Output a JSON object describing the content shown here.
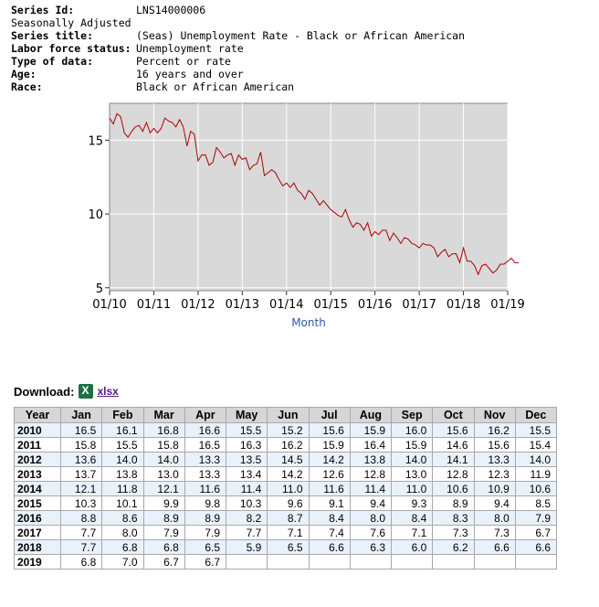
{
  "meta": [
    {
      "label": "Series Id:",
      "value": "LNS14000006",
      "bold": true
    },
    {
      "label": "Seasonally Adjusted",
      "value": "",
      "bold": false
    },
    {
      "label": "Series title:",
      "value": "(Seas) Unemployment Rate - Black or African American",
      "bold": true
    },
    {
      "label": "Labor force status:",
      "value": "Unemployment rate",
      "bold": true
    },
    {
      "label": "Type of data:",
      "value": "Percent or rate",
      "bold": true
    },
    {
      "label": "Age:",
      "value": "16 years and over",
      "bold": true
    },
    {
      "label": "Race:",
      "value": "Black or African American",
      "bold": true
    }
  ],
  "chart_data": {
    "type": "line",
    "xlabel": "Month",
    "ylabel": "",
    "x_ticks": [
      "01/10",
      "01/11",
      "01/12",
      "01/13",
      "01/14",
      "01/15",
      "01/16",
      "01/17",
      "01/18",
      "01/19"
    ],
    "y_ticks": [
      5,
      10,
      15
    ],
    "ylim": [
      4.8,
      17.5
    ],
    "grid": true,
    "line_color": "#b00000",
    "plot_bg": "#d9d9d9",
    "series": [
      {
        "values": [
          16.5,
          16.1,
          16.8,
          16.6,
          15.5,
          15.2,
          15.6,
          15.9,
          16.0,
          15.6,
          16.2,
          15.5,
          15.8,
          15.5,
          15.8,
          16.5,
          16.3,
          16.2,
          15.9,
          16.4,
          15.9,
          14.6,
          15.6,
          15.4,
          13.6,
          14.0,
          14.0,
          13.3,
          13.5,
          14.5,
          14.2,
          13.8,
          14.0,
          14.1,
          13.3,
          14.0,
          13.7,
          13.8,
          13.0,
          13.3,
          13.4,
          14.2,
          12.6,
          12.8,
          13.0,
          12.8,
          12.3,
          11.9,
          12.1,
          11.8,
          12.1,
          11.6,
          11.4,
          11.0,
          11.6,
          11.4,
          11.0,
          10.6,
          10.9,
          10.6,
          10.3,
          10.1,
          9.9,
          9.8,
          10.3,
          9.6,
          9.1,
          9.4,
          9.3,
          8.9,
          9.4,
          8.5,
          8.8,
          8.6,
          8.9,
          8.9,
          8.2,
          8.7,
          8.4,
          8.0,
          8.4,
          8.3,
          8.0,
          7.9,
          7.7,
          8.0,
          7.9,
          7.9,
          7.7,
          7.1,
          7.4,
          7.6,
          7.1,
          7.3,
          7.3,
          6.7,
          7.7,
          6.8,
          6.8,
          6.5,
          5.9,
          6.5,
          6.6,
          6.3,
          6.0,
          6.2,
          6.6,
          6.6,
          6.8,
          7.0,
          6.7,
          6.7
        ]
      }
    ]
  },
  "download": {
    "label": "Download:",
    "icon": "excel-icon",
    "link": "xlsx"
  },
  "table": {
    "headers": [
      "Year",
      "Jan",
      "Feb",
      "Mar",
      "Apr",
      "May",
      "Jun",
      "Jul",
      "Aug",
      "Sep",
      "Oct",
      "Nov",
      "Dec"
    ],
    "rows": [
      [
        "2010",
        "16.5",
        "16.1",
        "16.8",
        "16.6",
        "15.5",
        "15.2",
        "15.6",
        "15.9",
        "16.0",
        "15.6",
        "16.2",
        "15.5"
      ],
      [
        "2011",
        "15.8",
        "15.5",
        "15.8",
        "16.5",
        "16.3",
        "16.2",
        "15.9",
        "16.4",
        "15.9",
        "14.6",
        "15.6",
        "15.4"
      ],
      [
        "2012",
        "13.6",
        "14.0",
        "14.0",
        "13.3",
        "13.5",
        "14.5",
        "14.2",
        "13.8",
        "14.0",
        "14.1",
        "13.3",
        "14.0"
      ],
      [
        "2013",
        "13.7",
        "13.8",
        "13.0",
        "13.3",
        "13.4",
        "14.2",
        "12.6",
        "12.8",
        "13.0",
        "12.8",
        "12.3",
        "11.9"
      ],
      [
        "2014",
        "12.1",
        "11.8",
        "12.1",
        "11.6",
        "11.4",
        "11.0",
        "11.6",
        "11.4",
        "11.0",
        "10.6",
        "10.9",
        "10.6"
      ],
      [
        "2015",
        "10.3",
        "10.1",
        "9.9",
        "9.8",
        "10.3",
        "9.6",
        "9.1",
        "9.4",
        "9.3",
        "8.9",
        "9.4",
        "8.5"
      ],
      [
        "2016",
        "8.8",
        "8.6",
        "8.9",
        "8.9",
        "8.2",
        "8.7",
        "8.4",
        "8.0",
        "8.4",
        "8.3",
        "8.0",
        "7.9"
      ],
      [
        "2017",
        "7.7",
        "8.0",
        "7.9",
        "7.9",
        "7.7",
        "7.1",
        "7.4",
        "7.6",
        "7.1",
        "7.3",
        "7.3",
        "6.7"
      ],
      [
        "2018",
        "7.7",
        "6.8",
        "6.8",
        "6.5",
        "5.9",
        "6.5",
        "6.6",
        "6.3",
        "6.0",
        "6.2",
        "6.6",
        "6.6"
      ],
      [
        "2019",
        "6.8",
        "7.0",
        "6.7",
        "6.7",
        "",
        "",
        "",
        "",
        "",
        "",
        "",
        ""
      ]
    ]
  }
}
